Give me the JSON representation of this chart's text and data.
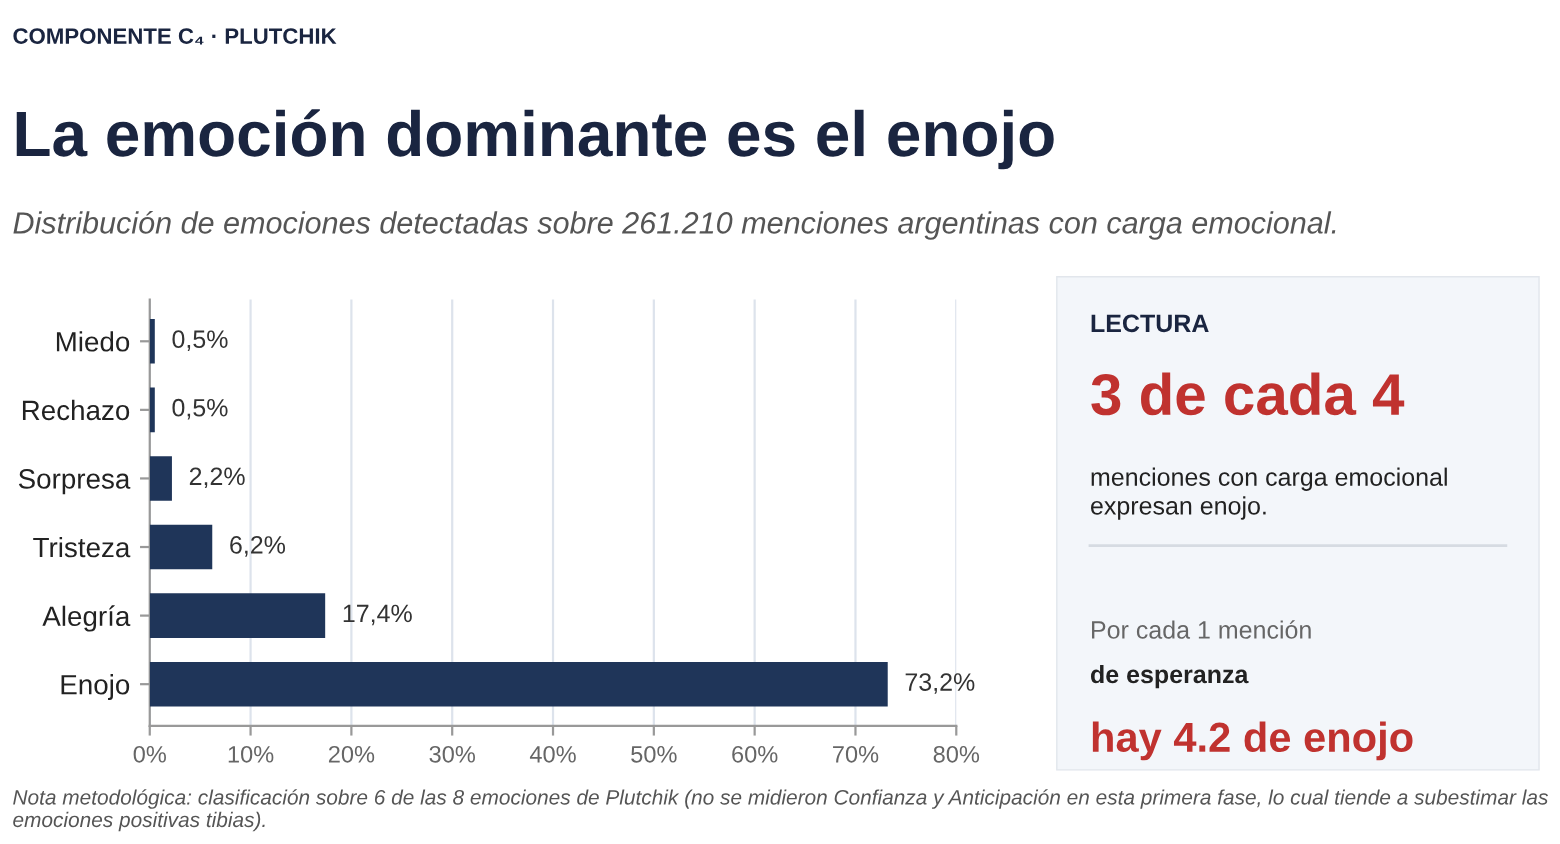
{
  "chart_data": [
    {
      "type": "bar",
      "orientation": "horizontal",
      "title": "La emoción dominante es el enojo",
      "subtitle": "Distribución de emociones detectadas sobre 261.210 menciones argentinas con carga emocional.",
      "annotations": [
        "COMPONENTE C₄ · PLUTCHIK",
        "Nota metodológica: clasificación sobre 6 de las 8 emociones de Plutchik (no se midieron Confianza y Anticipación en esta primera fase, lo cual tiende a subestimar las emociones positivas tibias)."
      ],
      "categories": [
        "Miedo",
        "Rechazo",
        "Sorpresa",
        "Tristeza",
        "Alegría",
        "Enojo"
      ],
      "values": [
        0.5,
        0.5,
        2.2,
        6.2,
        17.4,
        73.2
      ],
      "value_labels": [
        "0,5%",
        "0,5%",
        "2,2%",
        "6,2%",
        "17,4%",
        "73,2%"
      ],
      "color": "#1f3559",
      "xlim": [
        0,
        80
      ],
      "xticks": [
        {
          "value": 0,
          "label": "0%"
        },
        {
          "value": 10,
          "label": "10%"
        },
        {
          "value": 20,
          "label": "20%"
        },
        {
          "value": 30,
          "label": "30%"
        },
        {
          "value": 40,
          "label": "40%"
        },
        {
          "value": 50,
          "label": "50%"
        },
        {
          "value": 60,
          "label": "60%"
        },
        {
          "value": 70,
          "label": "70%"
        },
        {
          "value": 80,
          "label": "80%"
        }
      ],
      "grid": "x"
    },
    {
      "type": "other",
      "title": "LECTURA",
      "annotations": [
        "3 de cada 4",
        "menciones con carga emocional\nexpresan enojo.",
        "Por cada 1 mención",
        "de esperanza",
        "hay 4.2 de enojo"
      ]
    }
  ]
}
